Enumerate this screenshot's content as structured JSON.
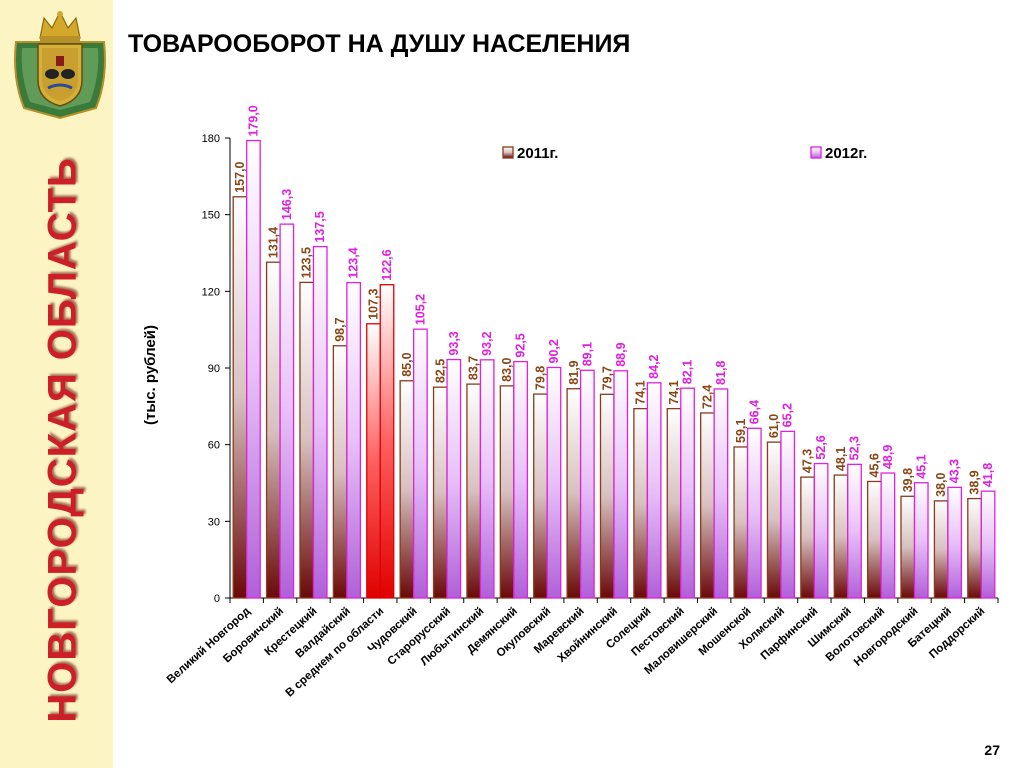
{
  "sidebar": {
    "region_title": "НОВГОРОДСКАЯ ОБЛАСТЬ",
    "emblem_icon": "coat-of-arms-icon"
  },
  "page": {
    "title": "ТОВАРООБОРОТ НА ДУШУ НАСЕЛЕНИЯ",
    "number": "27"
  },
  "colors": {
    "series_2011_stroke": "#8B3A1A",
    "series_2011_label": "#8B4513",
    "series_2012_stroke": "#E020E0",
    "series_2012_label": "#E020E0",
    "highlight": "#E00000",
    "sidebar_bg": "#fcf4c2",
    "region_title": "#cc1f28"
  },
  "chart_data": {
    "type": "bar",
    "title": "ТОВАРООБОРОТ НА ДУШУ НАСЕЛЕНИЯ",
    "xlabel": "",
    "ylabel": "(тыс. рублей)",
    "ylim": [
      0,
      180
    ],
    "yticks": [
      0,
      30,
      60,
      90,
      120,
      150,
      180
    ],
    "grid": false,
    "legend_position": "top",
    "highlighted_category": "В среднем по области",
    "categories": [
      "Великий Новгород",
      "Боровичский",
      "Крестецкий",
      "Валдайский",
      "В среднем по области",
      "Чудовский",
      "Старорусский",
      "Любытинский",
      "Демянский",
      "Окуловский",
      "Маревский",
      "Хвойнинский",
      "Солецкий",
      "Пестовский",
      "Маловишерский",
      "Мошенской",
      "Холмский",
      "Парфинский",
      "Шимский",
      "Волотовский",
      "Новгородский",
      "Батецкий",
      "Поддорский"
    ],
    "series": [
      {
        "name": "2011г.",
        "values": [
          157.0,
          131.4,
          123.5,
          98.7,
          107.3,
          85.0,
          82.5,
          83.7,
          83.0,
          79.8,
          81.9,
          79.7,
          74.1,
          74.1,
          72.4,
          59.1,
          61.0,
          47.3,
          48.1,
          45.6,
          39.8,
          38.0,
          38.9
        ],
        "labels": [
          "157,0",
          "131,4",
          "123,5",
          "98,7",
          "107,3",
          "85,0",
          "82,5",
          "83,7",
          "83,0",
          "79,8",
          "81,9",
          "79,7",
          "74,1",
          "74,1",
          "72,4",
          "59,1",
          "61,0",
          "47,3",
          "48,1",
          "45,6",
          "39,8",
          "38,0",
          "38,9"
        ]
      },
      {
        "name": "2012г.",
        "values": [
          179.0,
          146.3,
          137.5,
          123.4,
          122.6,
          105.2,
          93.3,
          93.2,
          92.5,
          90.2,
          89.1,
          88.9,
          84.2,
          82.1,
          81.8,
          66.4,
          65.2,
          52.6,
          52.3,
          48.9,
          45.1,
          43.3,
          41.8
        ],
        "labels": [
          "179,0",
          "146,3",
          "137,5",
          "123,4",
          "122,6",
          "105,2",
          "93,3",
          "93,2",
          "92,5",
          "90,2",
          "89,1",
          "88,9",
          "84,2",
          "82,1",
          "81,8",
          "66,4",
          "65,2",
          "52,6",
          "52,3",
          "48,9",
          "45,1",
          "43,3",
          "41,8"
        ]
      }
    ]
  }
}
